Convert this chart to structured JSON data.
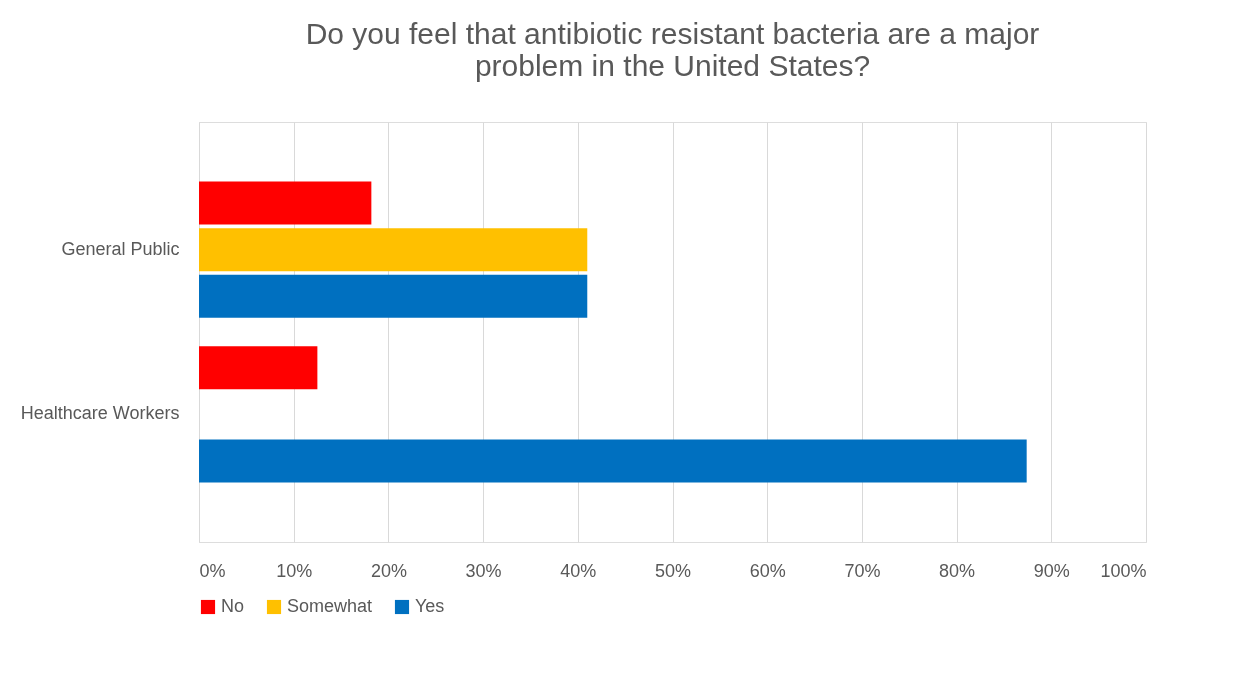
{
  "chart_data": {
    "type": "bar",
    "orientation": "horizontal",
    "title": [
      "Do you feel that antibiotic resistant bacteria are a major",
      "problem in the United States?"
    ],
    "categories": [
      "General Public",
      "Healthcare Workers"
    ],
    "series": [
      {
        "name": "No",
        "color": "#ff0000",
        "values": [
          18.2,
          12.5
        ]
      },
      {
        "name": "Somewhat",
        "color": "#ffc000",
        "values": [
          41,
          null
        ]
      },
      {
        "name": "Yes",
        "color": "#0070c0",
        "values": [
          41,
          87.4
        ]
      }
    ],
    "xlim": [
      0,
      100
    ],
    "xticks": [
      {
        "value": 0,
        "label": "0%"
      },
      {
        "value": 10,
        "label": "10%"
      },
      {
        "value": 20,
        "label": "20%"
      },
      {
        "value": 30,
        "label": "30%"
      },
      {
        "value": 40,
        "label": "40%"
      },
      {
        "value": 50,
        "label": "50%"
      },
      {
        "value": 60,
        "label": "60%"
      },
      {
        "value": 70,
        "label": "70%"
      },
      {
        "value": 80,
        "label": "80%"
      },
      {
        "value": 90,
        "label": "90%"
      },
      {
        "value": 100,
        "label": "100%"
      }
    ],
    "grid": "x",
    "legend": "bottom"
  }
}
